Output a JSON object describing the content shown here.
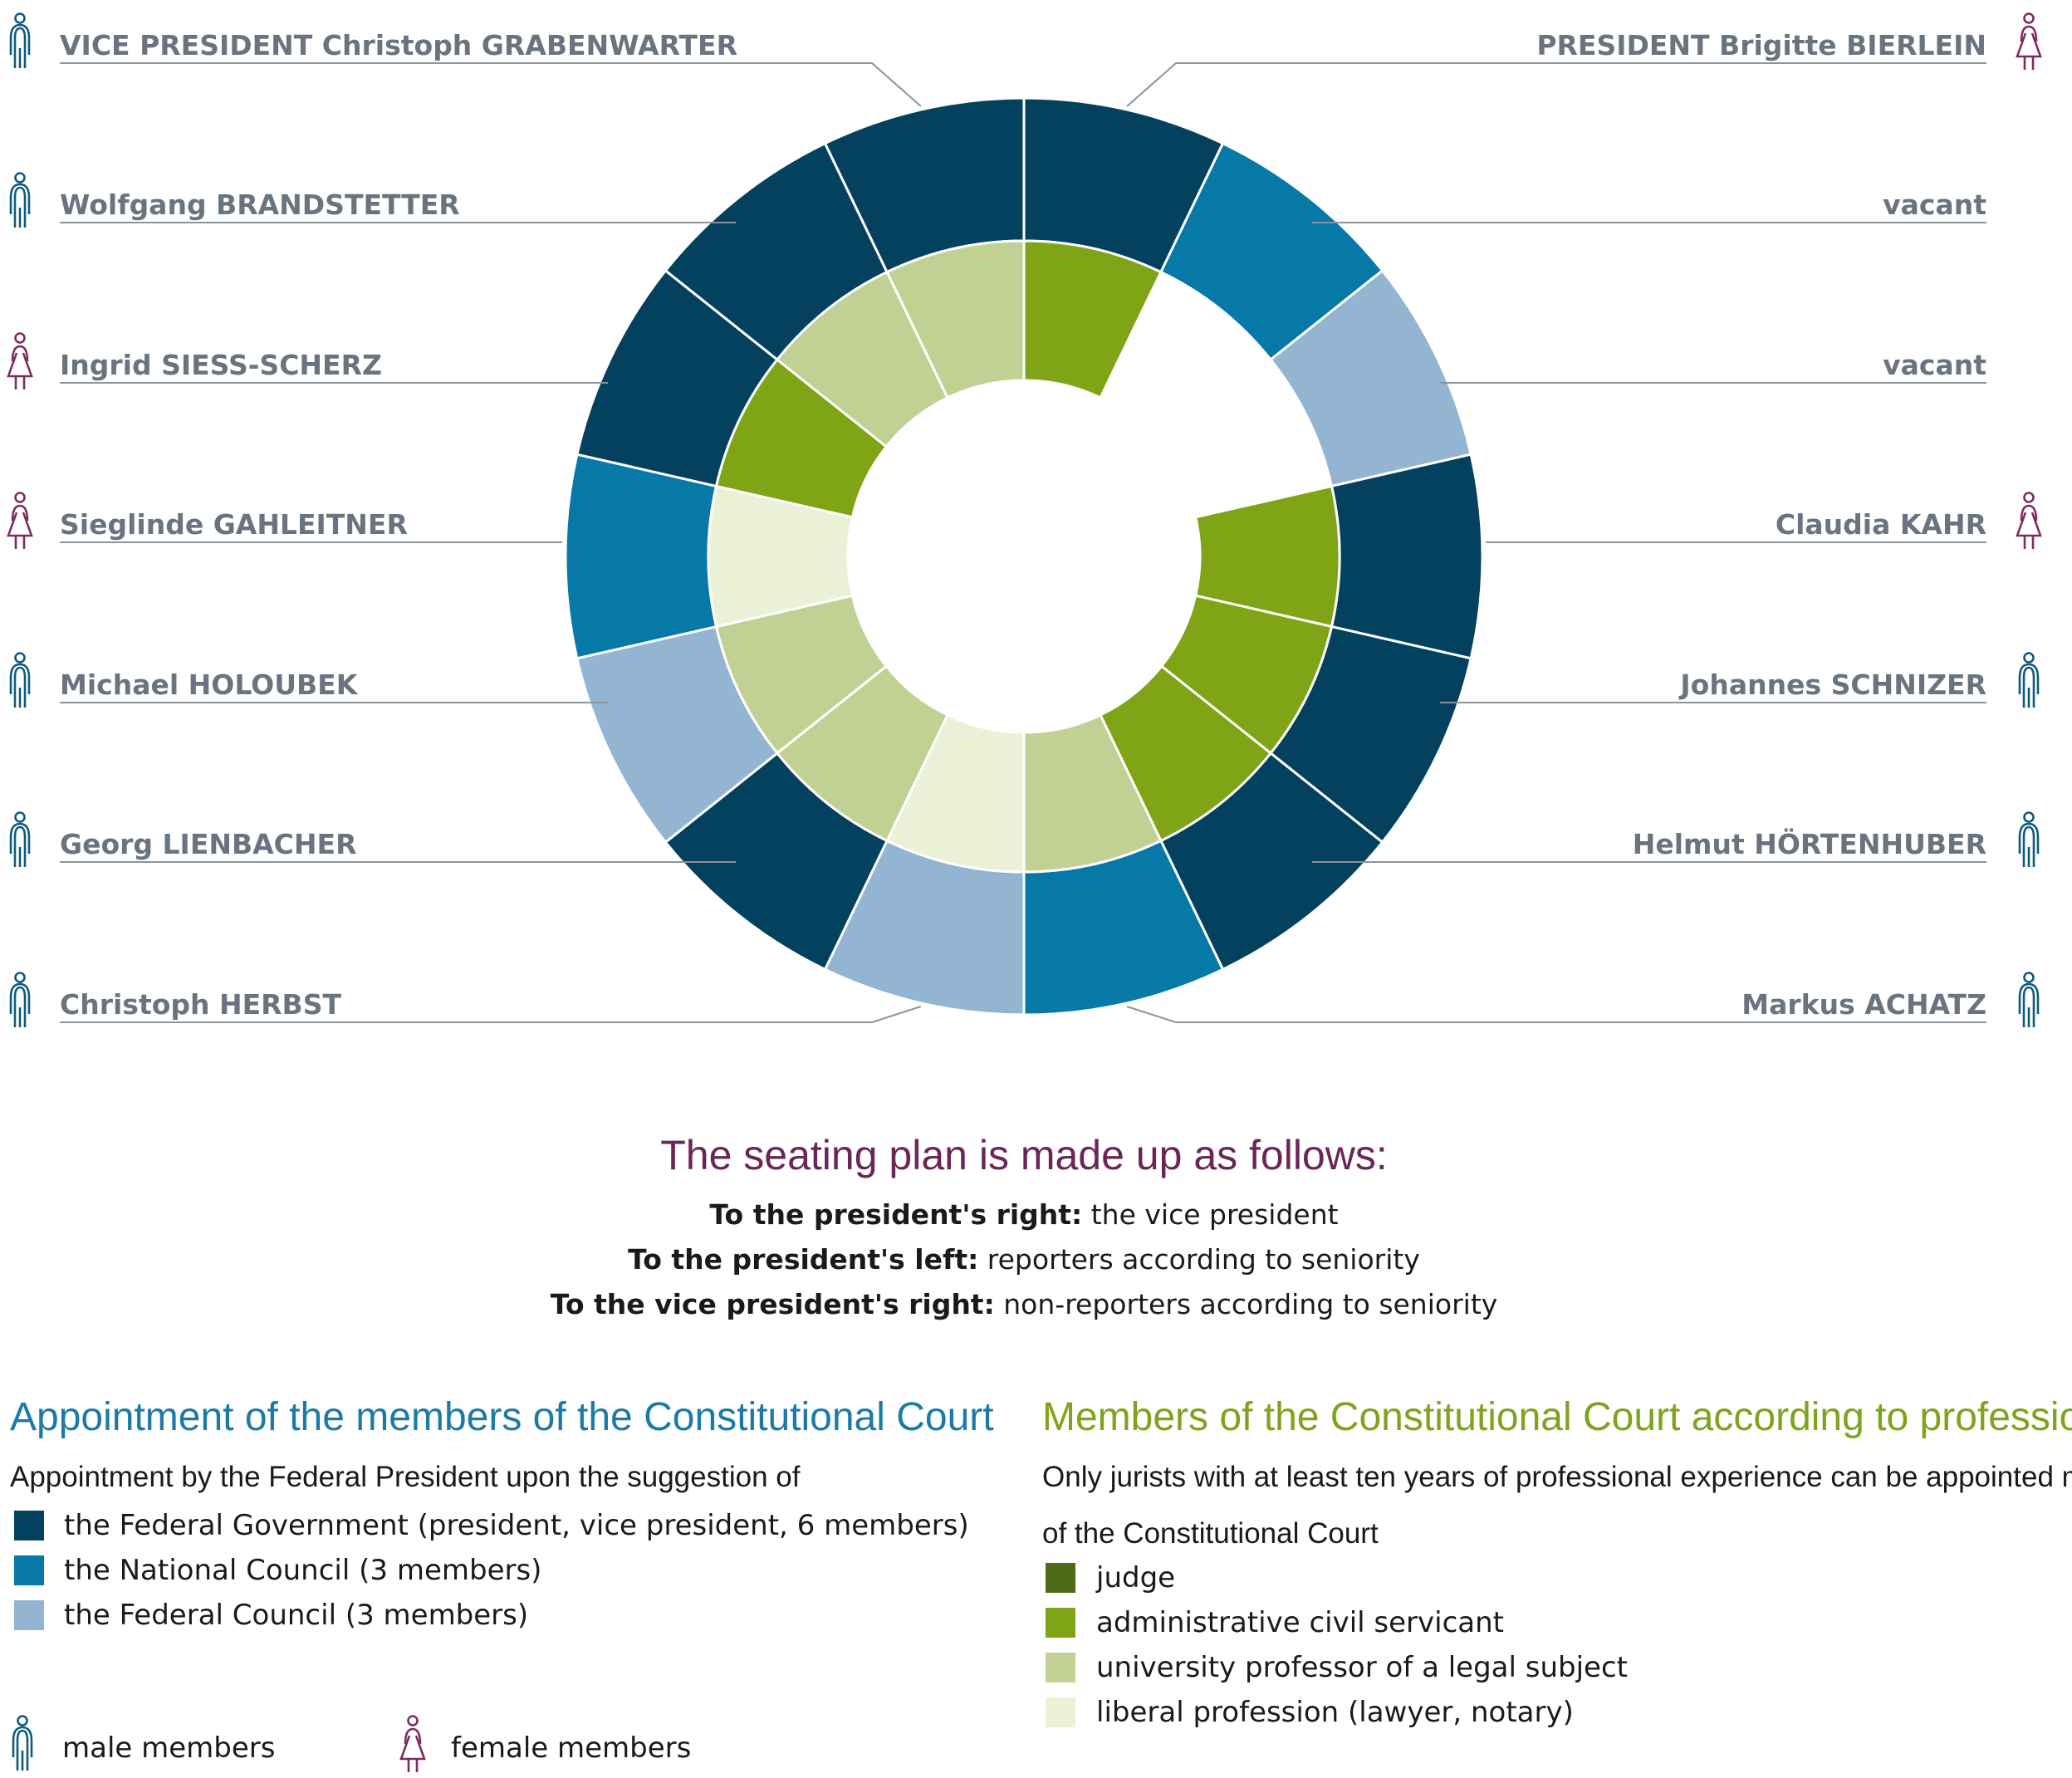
{
  "members_left": [
    {
      "name": "VICE PRESIDENT Christoph GRABENWARTER",
      "gender": "male"
    },
    {
      "name": "Wolfgang BRANDSTETTER",
      "gender": "male"
    },
    {
      "name": "Ingrid SIESS-SCHERZ",
      "gender": "female"
    },
    {
      "name": "Sieglinde GAHLEITNER",
      "gender": "female"
    },
    {
      "name": "Michael HOLOUBEK",
      "gender": "male"
    },
    {
      "name": "Georg LIENBACHER",
      "gender": "male"
    },
    {
      "name": "Christoph HERBST",
      "gender": "male"
    }
  ],
  "members_right": [
    {
      "name": "PRESIDENT Brigitte BIERLEIN",
      "gender": "female"
    },
    {
      "name": "vacant",
      "gender": ""
    },
    {
      "name": "vacant",
      "gender": ""
    },
    {
      "name": "Claudia KAHR",
      "gender": "female"
    },
    {
      "name": "Johannes SCHNIZER",
      "gender": "male"
    },
    {
      "name": "Helmut HÖRTENHUBER",
      "gender": "male"
    },
    {
      "name": "Markus ACHATZ",
      "gender": "male"
    }
  ],
  "ring": {
    "outer_clockwise_from_top": [
      "federal_government",
      "national_council",
      "federal_council",
      "federal_government",
      "federal_government",
      "federal_government",
      "national_council",
      "federal_council",
      "federal_government",
      "federal_council",
      "national_council",
      "federal_government",
      "federal_government",
      "federal_government"
    ],
    "inner_clockwise_from_top": [
      "administrative_civil_servicant",
      "",
      "",
      "administrative_civil_servicant",
      "administrative_civil_servicant",
      "administrative_civil_servicant",
      "university_professor",
      "liberal_profession",
      "university_professor",
      "university_professor",
      "liberal_profession",
      "administrative_civil_servicant",
      "university_professor",
      "university_professor"
    ]
  },
  "seating": {
    "title": "The seating plan is made up as follows:",
    "lines": [
      {
        "bold": "To the president's right:",
        "rest": " the vice president"
      },
      {
        "bold": "To the president's left:",
        "rest": " reporters according to seniority"
      },
      {
        "bold": "To the vice president's right:",
        "rest": " non-reporters according to seniority"
      }
    ]
  },
  "appointment": {
    "title": "Appointment of the members of the Constitutional Court",
    "intro": "Appointment by the Federal President upon the suggestion of",
    "items": [
      {
        "key": "federal_government",
        "label": "the Federal Government (president, vice president, 6 members)"
      },
      {
        "key": "national_council",
        "label": "the National Council (3 members)"
      },
      {
        "key": "federal_council",
        "label": "the Federal Council (3 members)"
      }
    ]
  },
  "gender_legend": {
    "male": "male members",
    "female": "female members"
  },
  "professional": {
    "title": "Members of the Constitutional Court according to professional group",
    "intro_lines": [
      "Only jurists with at least ten years of professional experience can be appointed member",
      "of the Constitutional Court"
    ],
    "items": [
      {
        "key": "judge",
        "label": "judge"
      },
      {
        "key": "administrative_civil_servicant",
        "label": "administrative civil servicant"
      },
      {
        "key": "university_professor",
        "label": "university professor of a legal subject"
      },
      {
        "key": "liberal_profession",
        "label": "liberal profession (lawyer, notary)"
      }
    ]
  },
  "colors": {
    "federal_government": "#04415f",
    "national_council": "#0779a6",
    "federal_council": "#93b5d1",
    "judge": "#4e6b17",
    "administrative_civil_servicant": "#7fa415",
    "university_professor": "#c1d193",
    "liberal_profession": "#ebf1d7",
    "male_icon": "#0f5a7c",
    "female_icon": "#7b2d62",
    "name_text": "#6a7480",
    "leader_line": "#8c949c"
  }
}
